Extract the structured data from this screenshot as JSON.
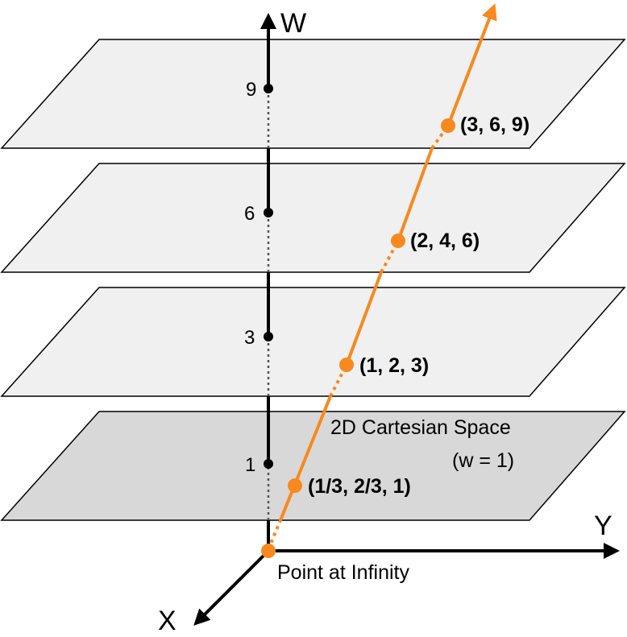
{
  "axes": {
    "w_label": "W",
    "x_label": "X",
    "y_label": "Y"
  },
  "ticks": [
    "9",
    "6",
    "3",
    "1"
  ],
  "planes": {
    "base_title": "2D Cartesian Space",
    "base_subtitle": "(w = 1)"
  },
  "points": [
    {
      "label": "(3, 6, 9)"
    },
    {
      "label": "(2, 4, 6)"
    },
    {
      "label": "(1, 2, 3)"
    },
    {
      "label": "(1/3, 2/3, 1)"
    }
  ],
  "origin_label": "Point at Infinity",
  "colors": {
    "ray": "#f7891f",
    "plane": "#f0f0f0",
    "base_plane": "#d8d8d8"
  }
}
